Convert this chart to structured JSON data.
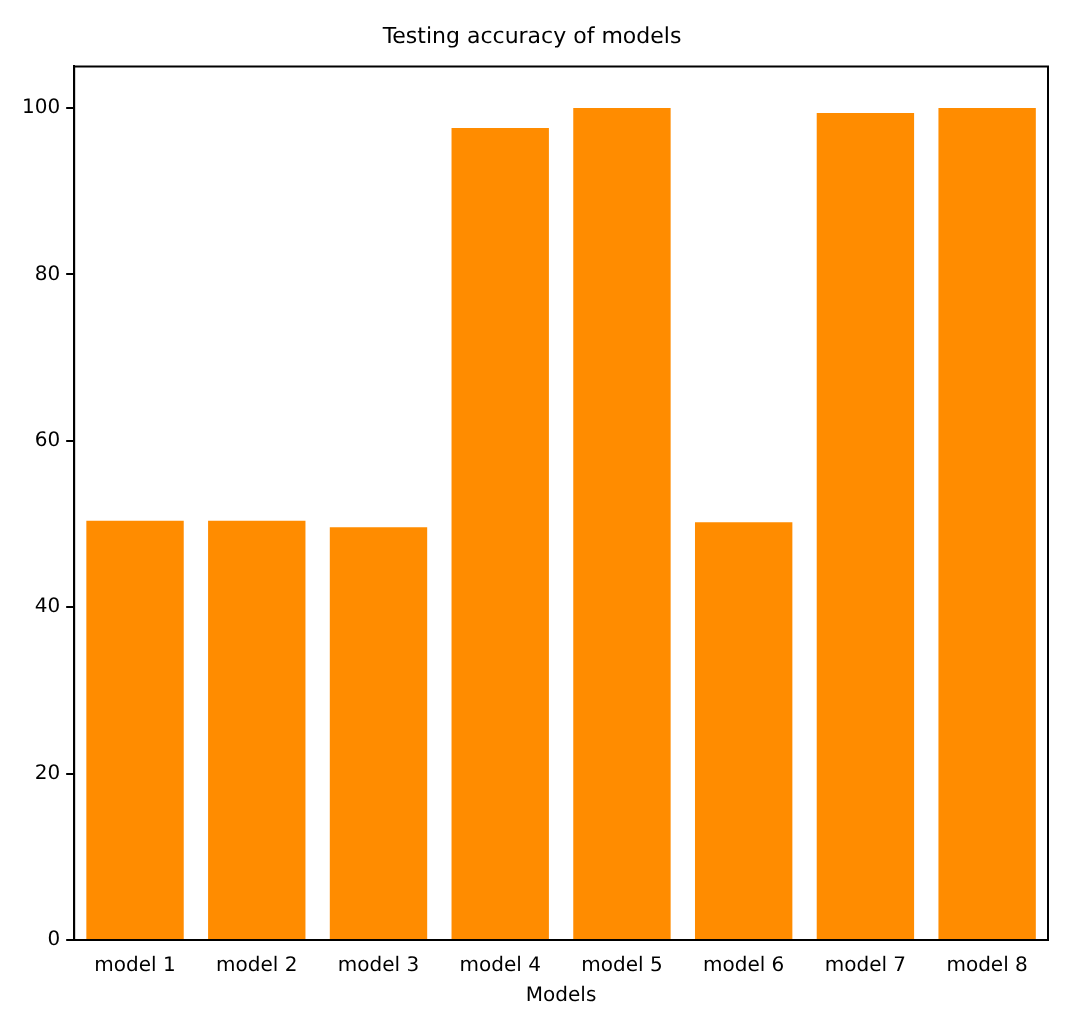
{
  "chart_data": {
    "type": "bar",
    "title": "Testing accuracy of models",
    "xlabel": "Models",
    "categories": [
      "model 1",
      "model 2",
      "model 3",
      "model 4",
      "model 5",
      "model 6",
      "model 7",
      "model 8"
    ],
    "values": [
      50.4,
      50.4,
      49.6,
      97.6,
      100,
      50.2,
      99.4,
      100
    ],
    "color": "#ff8c00",
    "ylim": [
      0,
      105
    ],
    "yticks": [
      0,
      20,
      40,
      60,
      80,
      100
    ],
    "grid": false,
    "legend": false
  }
}
